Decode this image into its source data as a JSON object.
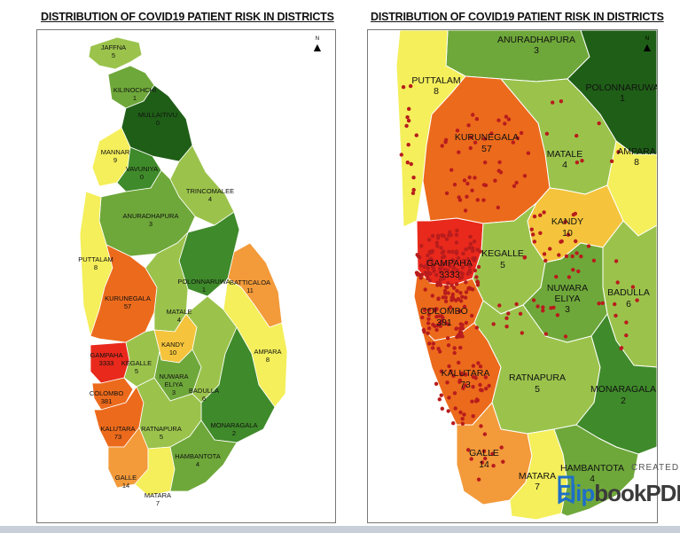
{
  "left_panel": {
    "title": "DISTRIBUTION OF COVID19 PATIENT RISK  IN DISTRICTS",
    "north_symbol": "N",
    "districts": [
      {
        "name": "JAFFNA",
        "value": "5"
      },
      {
        "name": "KILINOCHCHI",
        "value": "1"
      },
      {
        "name": "MULLAITIVU",
        "value": "0"
      },
      {
        "name": "MANNAR",
        "value": "9"
      },
      {
        "name": "VAVUNIYA",
        "value": "0"
      },
      {
        "name": "TRINCOMALEE",
        "value": "4"
      },
      {
        "name": "ANURADHAPURA",
        "value": "3"
      },
      {
        "name": "PUTTALAM",
        "value": "8"
      },
      {
        "name": "POLONNARUWA",
        "value": "1"
      },
      {
        "name": "BATTICALOA",
        "value": "11"
      },
      {
        "name": "KURUNEGALA",
        "value": "57"
      },
      {
        "name": "MATALE",
        "value": "4"
      },
      {
        "name": "KANDY",
        "value": "10"
      },
      {
        "name": "AMPARA",
        "value": "8"
      },
      {
        "name": "GAMPAHA",
        "value": "3333"
      },
      {
        "name": "KEGALLE",
        "value": "5"
      },
      {
        "name": "NUWARA",
        "value": "ELIYA"
      },
      {
        "name": "NUWARA_ELIYA_VALUE",
        "value": "3"
      },
      {
        "name": "BADULLA",
        "value": "6"
      },
      {
        "name": "COLOMBO",
        "value": "381"
      },
      {
        "name": "KALUTARA",
        "value": "73"
      },
      {
        "name": "RATNAPURA",
        "value": "5"
      },
      {
        "name": "MONARAGALA",
        "value": "2"
      },
      {
        "name": "GALLE",
        "value": "14"
      },
      {
        "name": "HAMBANTOTA",
        "value": "4"
      },
      {
        "name": "MATARA",
        "value": "7"
      }
    ]
  },
  "right_panel": {
    "title": "DISTRIBUTION OF COVID19 PATIENT RISK  IN DISTRICTS",
    "north_symbol": "N",
    "districts": [
      {
        "name": "ANURADHAPURA",
        "value": "3"
      },
      {
        "name": "PUTTALAM",
        "value": "8"
      },
      {
        "name": "POLONNARUWA",
        "value": "1"
      },
      {
        "name": "KURUNEGALA",
        "value": "57"
      },
      {
        "name": "MATALE",
        "value": "4"
      },
      {
        "name": "AMPARA",
        "value": "8"
      },
      {
        "name": "KANDY",
        "value": "10"
      },
      {
        "name": "GAMPAHA",
        "value": "3333"
      },
      {
        "name": "KEGALLE",
        "value": "5"
      },
      {
        "name": "NUWARA",
        "value": "ELIYA"
      },
      {
        "name": "NUWARA_ELIYA_VALUE",
        "value": "3"
      },
      {
        "name": "BADULLA",
        "value": "6"
      },
      {
        "name": "COLOMBO",
        "value": "381"
      },
      {
        "name": "KALUTARA",
        "value": "73"
      },
      {
        "name": "RATNAPURA",
        "value": "5"
      },
      {
        "name": "MONARAGALA",
        "value": "2"
      },
      {
        "name": "GALLE",
        "value": "14"
      },
      {
        "name": "HAMBANTOTA",
        "value": "4"
      },
      {
        "name": "MATARA",
        "value": "7"
      }
    ]
  },
  "watermark": {
    "created_by": "CREATED ",
    "brand_flip": "Flip",
    "brand_book": "bookPDF"
  },
  "colors": {
    "very_high": "#e8291c",
    "high": "#ec6a1c",
    "med_high": "#f39a3a",
    "medium": "#f5c43c",
    "low_med": "#f4ef5a",
    "low": "#c3d96b",
    "lower": "#9bc34c",
    "lowest": "#6fa83a",
    "min": "#3f8a2a",
    "darkest": "#1f5e17",
    "points": "#b81c1c"
  }
}
